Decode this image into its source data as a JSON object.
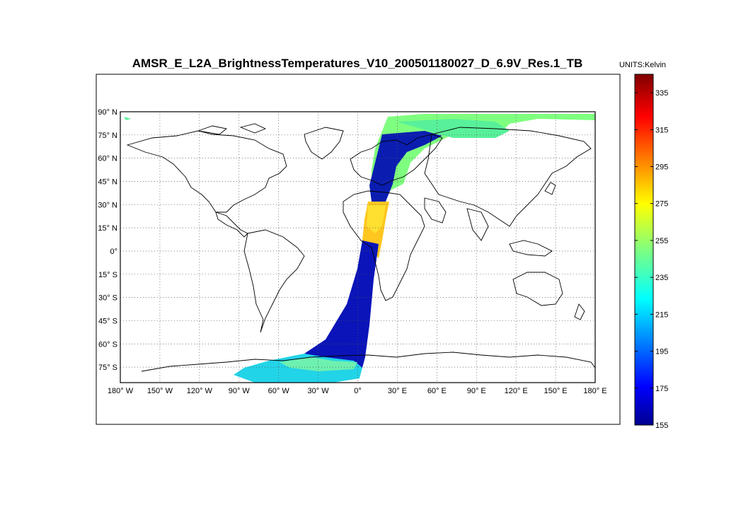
{
  "chart_data": {
    "type": "heatmap",
    "title": "AMSR_E_L2A_BrightnessTemperatures_V10_200501180027_D_6.9V_Res.1_TB",
    "units_label": "UNITS:Kelvin",
    "map": {
      "projection": "equirectangular",
      "lon_range": [
        -180,
        180
      ],
      "lat_range": [
        -90,
        90
      ],
      "grid": true,
      "lon_ticks": [
        {
          "value": -180,
          "label": "180° W"
        },
        {
          "value": -150,
          "label": "150° W"
        },
        {
          "value": -120,
          "label": "120° W"
        },
        {
          "value": -90,
          "label": "90° W"
        },
        {
          "value": -60,
          "label": "60° W"
        },
        {
          "value": -30,
          "label": "30° W"
        },
        {
          "value": 0,
          "label": "0°"
        },
        {
          "value": 30,
          "label": "30° E"
        },
        {
          "value": 60,
          "label": "60° E"
        },
        {
          "value": 90,
          "label": "90° E"
        },
        {
          "value": 120,
          "label": "120° E"
        },
        {
          "value": 150,
          "label": "150° E"
        },
        {
          "value": 180,
          "label": "180° E"
        }
      ],
      "lat_ticks": [
        {
          "value": 90,
          "label": "90° N"
        },
        {
          "value": 75,
          "label": "75° N"
        },
        {
          "value": 60,
          "label": "60° N"
        },
        {
          "value": 45,
          "label": "45° N"
        },
        {
          "value": 30,
          "label": "30° N"
        },
        {
          "value": 15,
          "label": "15° N"
        },
        {
          "value": 0,
          "label": "0°"
        },
        {
          "value": -15,
          "label": "15° S"
        },
        {
          "value": -30,
          "label": "30° S"
        },
        {
          "value": -45,
          "label": "45° S"
        },
        {
          "value": -60,
          "label": "60° S"
        },
        {
          "value": -75,
          "label": "75° S"
        }
      ]
    },
    "colorbar": {
      "min": 155,
      "max": 345,
      "colormap": "jet",
      "ticks": [
        155,
        175,
        195,
        215,
        235,
        255,
        275,
        295,
        315,
        335
      ]
    },
    "swath": {
      "description_values": [
        {
          "lat": 85,
          "lon_center": 60,
          "value": 250
        },
        {
          "lat": 75,
          "lon_center": 22,
          "value": 165
        },
        {
          "lat": 60,
          "lon_center": 16,
          "value": 165
        },
        {
          "lat": 45,
          "lon_center": 13,
          "value": 175
        },
        {
          "lat": 30,
          "lon_center": 13,
          "value": 272
        },
        {
          "lat": 15,
          "lon_center": 11,
          "value": 282
        },
        {
          "lat": 0,
          "lon_center": 9,
          "value": 168
        },
        {
          "lat": -30,
          "lon_center": 2,
          "value": 165
        },
        {
          "lat": -60,
          "lon_center": -10,
          "value": 165
        },
        {
          "lat": -80,
          "lon_center": -50,
          "value": 225
        }
      ]
    }
  }
}
